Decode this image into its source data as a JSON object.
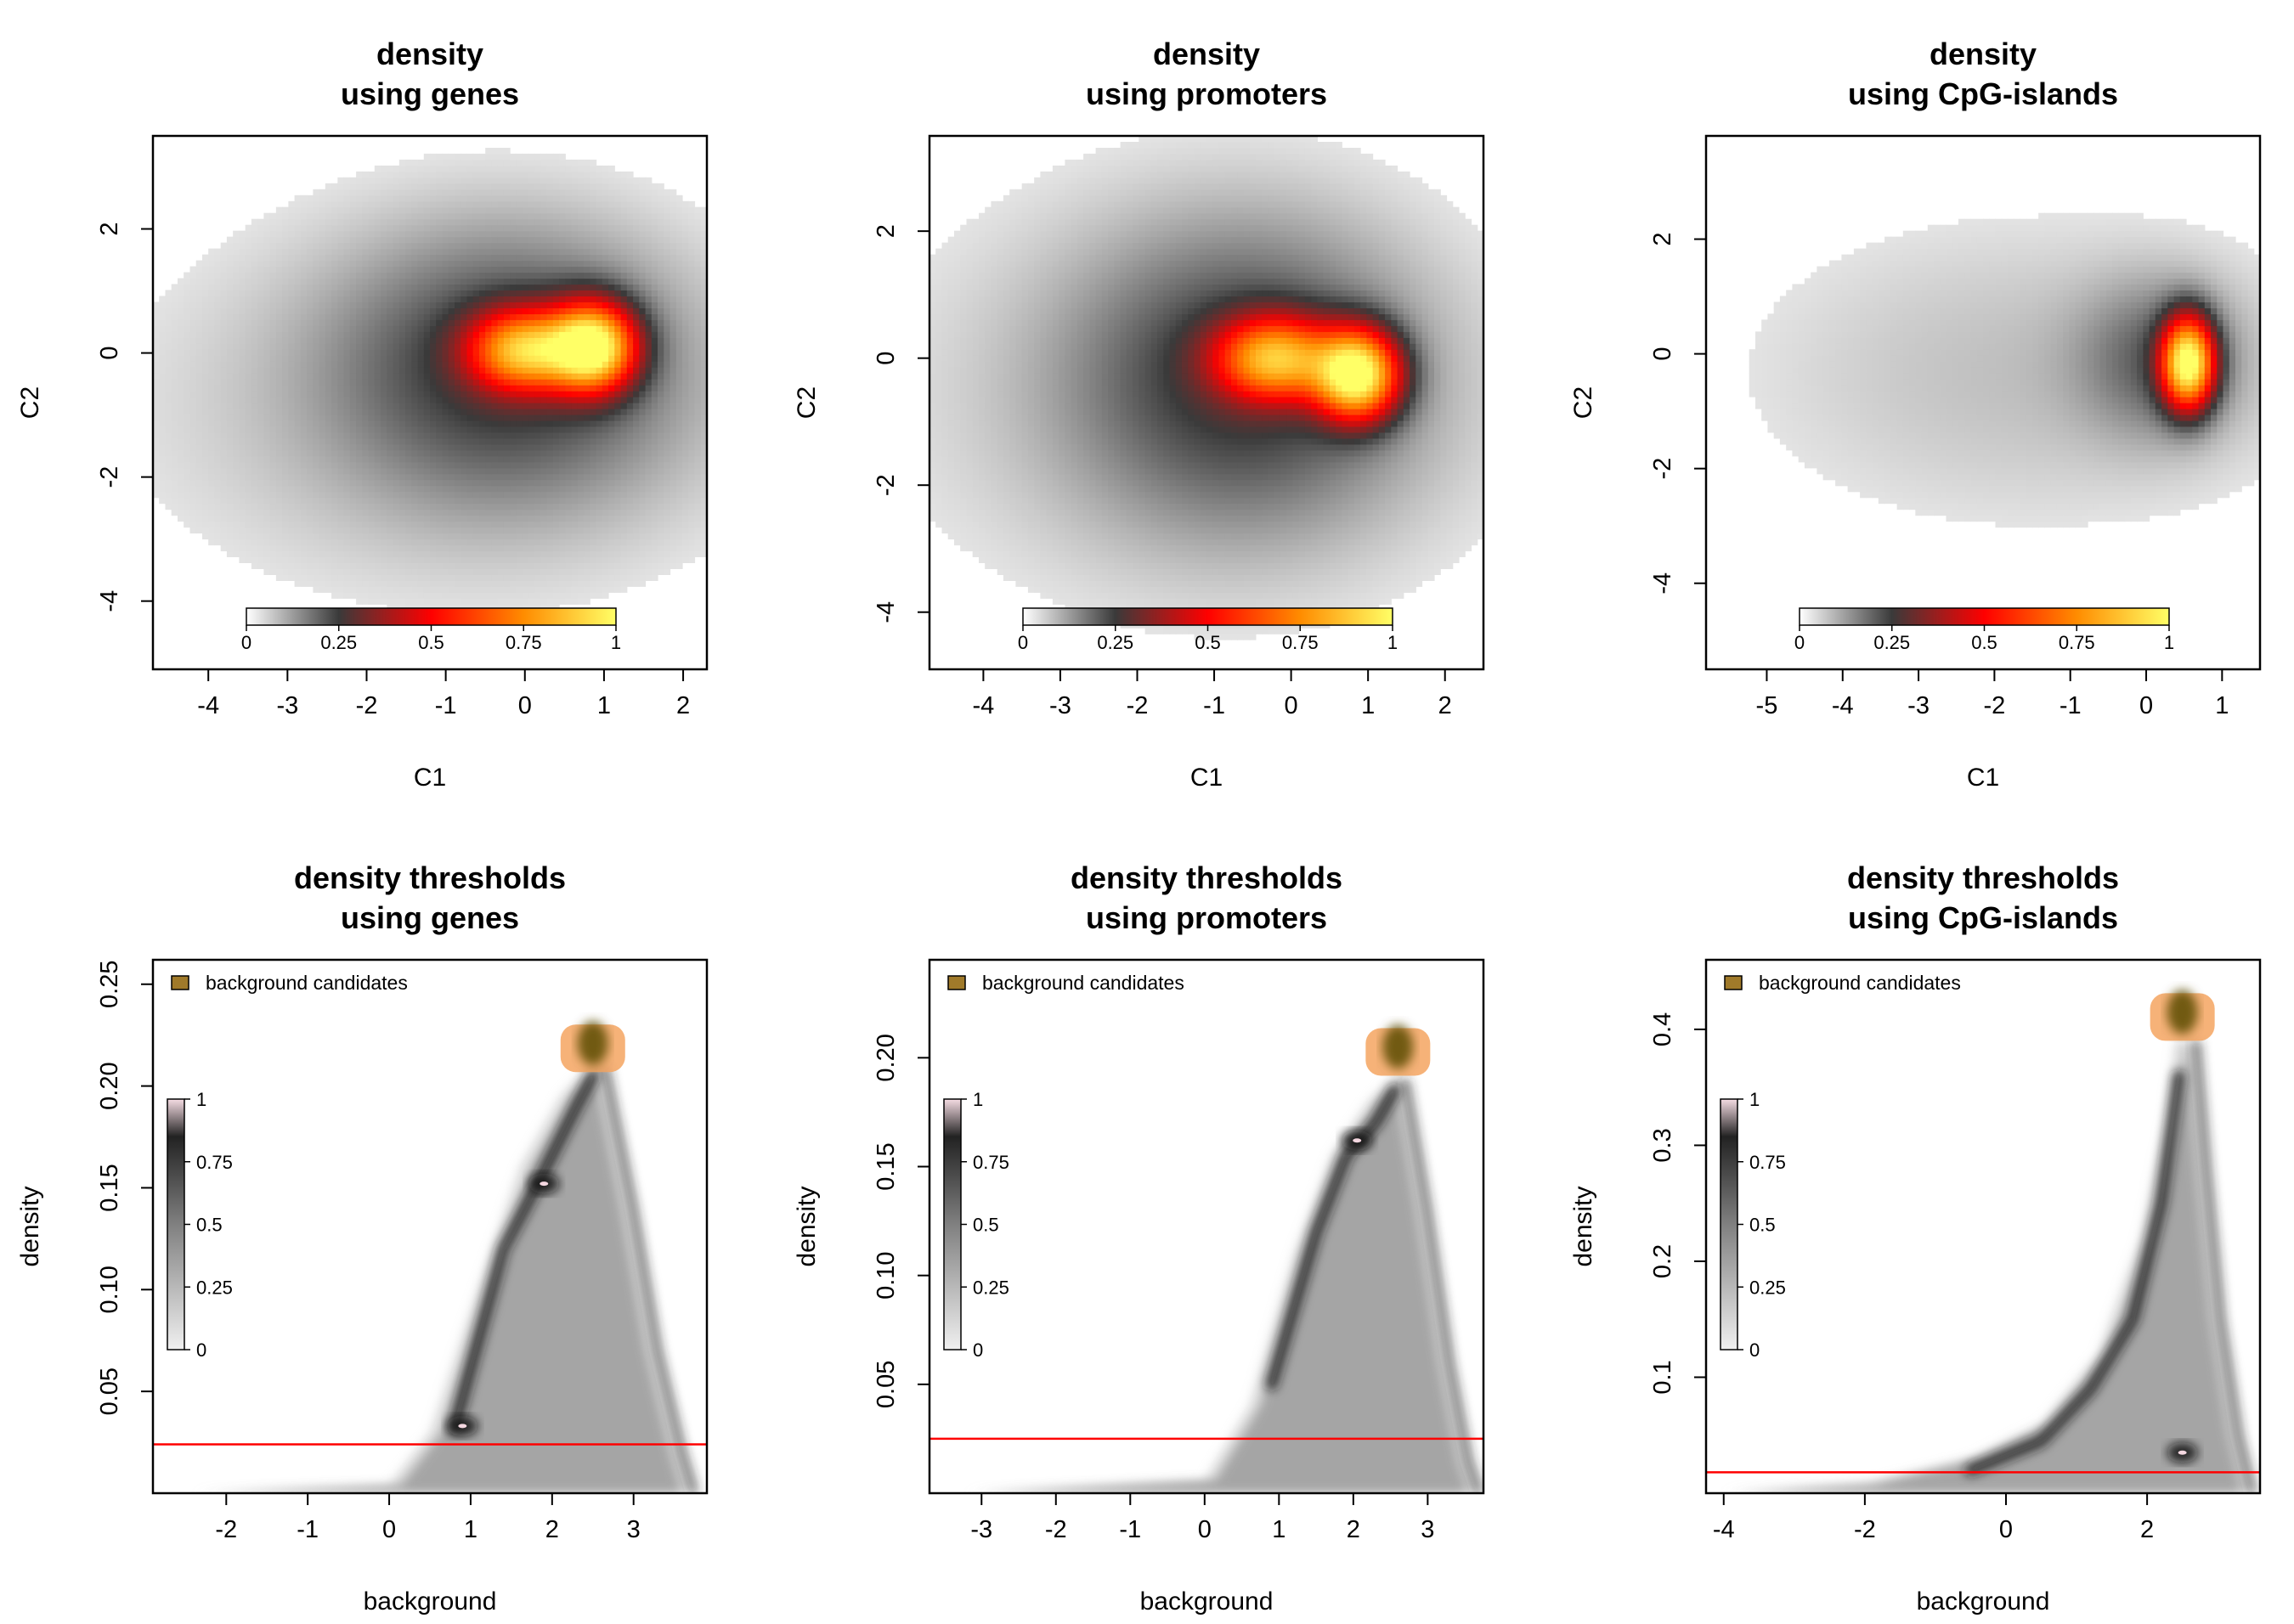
{
  "chart_data": [
    {
      "type": "heatmap",
      "title": [
        "density",
        "using genes"
      ],
      "xlabel": "C1",
      "ylabel": "C2",
      "xlim": [
        -4.7,
        2.3
      ],
      "ylim": [
        -5.1,
        3.5
      ],
      "xticks": [
        -4,
        -3,
        -2,
        -1,
        0,
        1,
        2
      ],
      "yticks": [
        -4,
        -2,
        0,
        2
      ],
      "colorbar": {
        "ticks": [
          "0",
          "0.25",
          "0.5",
          "0.75",
          "1"
        ],
        "colors": [
          "#ffffff",
          "#3a3a3a",
          "#ff0000",
          "#ff8c00",
          "#ffff66"
        ]
      },
      "density_blobs": [
        {
          "cx": 0.85,
          "cy": 0.1,
          "sx": 0.35,
          "sy": 0.45,
          "w": 1.0
        },
        {
          "cx": 0.0,
          "cy": 0.05,
          "sx": 0.45,
          "sy": 0.42,
          "w": 0.72
        },
        {
          "cx": -0.2,
          "cy": -0.2,
          "sx": 1.4,
          "sy": 1.4,
          "w": 0.14
        },
        {
          "cx": -1.0,
          "cy": -0.8,
          "sx": 2.6,
          "sy": 2.0,
          "w": 0.04
        }
      ]
    },
    {
      "type": "heatmap",
      "title": [
        "density",
        "using promoters"
      ],
      "xlabel": "C1",
      "ylabel": "C2",
      "xlim": [
        -4.7,
        2.5
      ],
      "ylim": [
        -4.9,
        3.5
      ],
      "xticks": [
        -4,
        -3,
        -2,
        -1,
        0,
        1,
        2
      ],
      "yticks": [
        -4,
        -2,
        0,
        2
      ],
      "colorbar": {
        "ticks": [
          "0",
          "0.25",
          "0.5",
          "0.75",
          "1"
        ],
        "colors": [
          "#ffffff",
          "#3a3a3a",
          "#ff0000",
          "#ff8c00",
          "#ffff66"
        ]
      },
      "density_blobs": [
        {
          "cx": 0.85,
          "cy": -0.25,
          "sx": 0.35,
          "sy": 0.45,
          "w": 1.0
        },
        {
          "cx": -0.2,
          "cy": 0.0,
          "sx": 0.5,
          "sy": 0.42,
          "w": 0.7
        },
        {
          "cx": -0.6,
          "cy": -0.3,
          "sx": 1.4,
          "sy": 1.5,
          "w": 0.14
        },
        {
          "cx": -1.2,
          "cy": -0.5,
          "sx": 2.6,
          "sy": 2.2,
          "w": 0.04
        }
      ]
    },
    {
      "type": "heatmap",
      "title": [
        "density",
        "using CpG-islands"
      ],
      "xlabel": "C1",
      "ylabel": "C2",
      "xlim": [
        -5.8,
        1.5
      ],
      "ylim": [
        -5.5,
        3.8
      ],
      "xticks": [
        -5,
        -4,
        -3,
        -2,
        -1,
        0,
        1
      ],
      "yticks": [
        -4,
        -2,
        0,
        2
      ],
      "colorbar": {
        "ticks": [
          "0",
          "0.25",
          "0.5",
          "0.75",
          "1"
        ],
        "colors": [
          "#ffffff",
          "#3a3a3a",
          "#ff0000",
          "#ff8c00",
          "#ffff66"
        ]
      },
      "density_blobs": [
        {
          "cx": 0.55,
          "cy": -0.15,
          "sx": 0.22,
          "sy": 0.5,
          "w": 1.0
        },
        {
          "cx": 0.2,
          "cy": -0.1,
          "sx": 0.7,
          "sy": 0.9,
          "w": 0.1
        },
        {
          "cx": -1.5,
          "cy": -0.3,
          "sx": 2.5,
          "sy": 1.8,
          "w": 0.035
        }
      ]
    },
    {
      "type": "heatmap",
      "title": [
        "density thresholds",
        "using genes"
      ],
      "xlabel": "background",
      "ylabel": "density",
      "xlim": [
        -2.9,
        3.9
      ],
      "ylim": [
        0.0,
        0.262
      ],
      "xticks": [
        -2,
        -1,
        0,
        1,
        2,
        3
      ],
      "yticks": [
        0.05,
        0.1,
        0.15,
        0.2,
        0.25
      ],
      "ytick_labels": [
        "0.05",
        "0.10",
        "0.15",
        "0.20",
        "0.25"
      ],
      "threshold": 0.024,
      "legend": "background candidates",
      "colorbar": {
        "ticks": [
          "0",
          "0.25",
          "0.5",
          "0.75",
          "1"
        ]
      },
      "shape": {
        "left": [
          [
            -2.4,
            0.0
          ],
          [
            0.0,
            0.004
          ],
          [
            0.5,
            0.03
          ],
          [
            1.0,
            0.09
          ],
          [
            1.6,
            0.16
          ],
          [
            2.1,
            0.195
          ],
          [
            2.45,
            0.21
          ]
        ],
        "right": [
          [
            2.65,
            0.21
          ],
          [
            3.0,
            0.14
          ],
          [
            3.3,
            0.07
          ],
          [
            3.6,
            0.02
          ],
          [
            3.75,
            0.0
          ]
        ],
        "ridge": [
          [
            0.8,
            0.032
          ],
          [
            1.4,
            0.12
          ],
          [
            1.8,
            0.15
          ],
          [
            2.3,
            0.19
          ],
          [
            2.5,
            0.205
          ]
        ],
        "hotspots": [
          [
            1.9,
            0.152
          ],
          [
            0.9,
            0.033
          ]
        ],
        "peak": [
          2.5,
          0.221
        ]
      }
    },
    {
      "type": "heatmap",
      "title": [
        "density thresholds",
        "using promoters"
      ],
      "xlabel": "background",
      "ylabel": "density",
      "xlim": [
        -3.7,
        3.75
      ],
      "ylim": [
        0.0,
        0.245
      ],
      "xticks": [
        -3,
        -2,
        -1,
        0,
        1,
        2,
        3
      ],
      "yticks": [
        0.05,
        0.1,
        0.15,
        0.2
      ],
      "ytick_labels": [
        "0.05",
        "0.10",
        "0.15",
        "0.20"
      ],
      "threshold": 0.025,
      "legend": "background candidates",
      "colorbar": {
        "ticks": [
          "0",
          "0.25",
          "0.5",
          "0.75",
          "1"
        ]
      },
      "shape": {
        "left": [
          [
            -3.2,
            0.0
          ],
          [
            0.0,
            0.006
          ],
          [
            0.6,
            0.04
          ],
          [
            1.2,
            0.11
          ],
          [
            1.7,
            0.155
          ],
          [
            2.2,
            0.18
          ],
          [
            2.5,
            0.19
          ]
        ],
        "right": [
          [
            2.7,
            0.19
          ],
          [
            3.0,
            0.13
          ],
          [
            3.3,
            0.06
          ],
          [
            3.55,
            0.015
          ],
          [
            3.7,
            0.0
          ]
        ],
        "ridge": [
          [
            0.9,
            0.05
          ],
          [
            1.5,
            0.12
          ],
          [
            1.9,
            0.155
          ],
          [
            2.3,
            0.17
          ],
          [
            2.55,
            0.185
          ]
        ],
        "hotspots": [
          [
            2.05,
            0.162
          ]
        ],
        "peak": [
          2.6,
          0.205
        ]
      }
    },
    {
      "type": "heatmap",
      "title": [
        "density thresholds",
        "using CpG-islands"
      ],
      "xlabel": "background",
      "ylabel": "density",
      "xlim": [
        -4.25,
        3.6
      ],
      "ylim": [
        0.0,
        0.46
      ],
      "xticks": [
        -4,
        -2,
        0,
        2
      ],
      "yticks": [
        0.1,
        0.2,
        0.3,
        0.4
      ],
      "ytick_labels": [
        "0.1",
        "0.2",
        "0.3",
        "0.4"
      ],
      "threshold": 0.018,
      "legend": "background candidates",
      "colorbar": {
        "ticks": [
          "0",
          "0.25",
          "0.5",
          "0.75",
          "1"
        ]
      },
      "shape": {
        "left": [
          [
            -4.0,
            0.0
          ],
          [
            -2.0,
            0.008
          ],
          [
            -0.5,
            0.03
          ],
          [
            0.5,
            0.06
          ],
          [
            1.3,
            0.12
          ],
          [
            1.9,
            0.22
          ],
          [
            2.25,
            0.32
          ],
          [
            2.4,
            0.39
          ]
        ],
        "right": [
          [
            2.7,
            0.39
          ],
          [
            2.85,
            0.28
          ],
          [
            3.05,
            0.15
          ],
          [
            3.3,
            0.05
          ],
          [
            3.5,
            0.0
          ]
        ],
        "ridge": [
          [
            -0.5,
            0.02
          ],
          [
            0.5,
            0.045
          ],
          [
            1.2,
            0.09
          ],
          [
            1.8,
            0.15
          ],
          [
            2.2,
            0.25
          ],
          [
            2.45,
            0.36
          ]
        ],
        "hotspots": [
          [
            2.5,
            0.035
          ]
        ],
        "peak": [
          2.5,
          0.415
        ]
      }
    }
  ]
}
